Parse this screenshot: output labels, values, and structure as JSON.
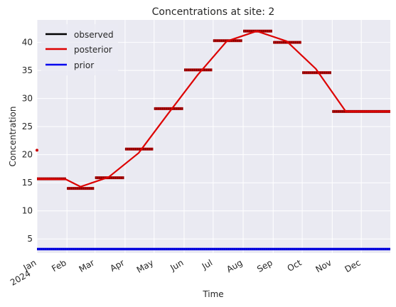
{
  "chart_data": {
    "type": "line",
    "title": "Concentrations at site: 2",
    "xlabel": "Time",
    "ylabel": "Concentration",
    "xlim": [
      "2024-01-01",
      "2024-12-31"
    ],
    "ylim": [
      2.5,
      44
    ],
    "grid": true,
    "legend_position": "top-left",
    "x_ticks": [
      {
        "date": "2024-01-01",
        "label": "Jan",
        "sublabel": "2024"
      },
      {
        "date": "2024-02-01",
        "label": "Feb"
      },
      {
        "date": "2024-03-01",
        "label": "Mar"
      },
      {
        "date": "2024-04-01",
        "label": "Apr"
      },
      {
        "date": "2024-05-01",
        "label": "May"
      },
      {
        "date": "2024-06-01",
        "label": "Jun"
      },
      {
        "date": "2024-07-01",
        "label": "Jul"
      },
      {
        "date": "2024-08-01",
        "label": "Aug"
      },
      {
        "date": "2024-09-01",
        "label": "Sep"
      },
      {
        "date": "2024-10-01",
        "label": "Oct"
      },
      {
        "date": "2024-11-01",
        "label": "Nov"
      },
      {
        "date": "2024-12-01",
        "label": "Dec"
      }
    ],
    "y_ticks": [
      5,
      10,
      15,
      20,
      25,
      30,
      35,
      40
    ],
    "series": [
      {
        "name": "observed",
        "color": "#000000",
        "style": "markers",
        "segments": [
          {
            "start": "2024-01-01",
            "end": "2024-01-31",
            "value": 15.7
          },
          {
            "start": "2024-02-01",
            "end": "2024-02-29",
            "value": 14.0
          },
          {
            "start": "2024-03-01",
            "end": "2024-03-31",
            "value": 15.9
          },
          {
            "start": "2024-04-01",
            "end": "2024-04-30",
            "value": 21.0
          },
          {
            "start": "2024-05-01",
            "end": "2024-05-31",
            "value": 28.2
          },
          {
            "start": "2024-06-01",
            "end": "2024-06-30",
            "value": 35.1
          },
          {
            "start": "2024-07-01",
            "end": "2024-07-31",
            "value": 40.3
          },
          {
            "start": "2024-08-01",
            "end": "2024-08-31",
            "value": 42.0
          },
          {
            "start": "2024-09-01",
            "end": "2024-09-30",
            "value": 40.0
          },
          {
            "start": "2024-10-01",
            "end": "2024-10-31",
            "value": 34.6
          },
          {
            "start": "2024-11-01",
            "end": "2024-12-31",
            "value": 27.7
          }
        ],
        "extra_points": [
          {
            "date": "2024-01-01",
            "value": 20.8
          }
        ]
      },
      {
        "name": "posterior",
        "color": "#dd0000",
        "style": "line",
        "points": [
          {
            "date": "2024-01-01",
            "value": 15.7
          },
          {
            "date": "2024-01-31",
            "value": 15.6
          },
          {
            "date": "2024-02-15",
            "value": 14.3
          },
          {
            "date": "2024-03-15",
            "value": 16.0
          },
          {
            "date": "2024-04-15",
            "value": 20.3
          },
          {
            "date": "2024-05-15",
            "value": 27.2
          },
          {
            "date": "2024-06-15",
            "value": 34.2
          },
          {
            "date": "2024-07-15",
            "value": 40.2
          },
          {
            "date": "2024-08-15",
            "value": 42.0
          },
          {
            "date": "2024-09-15",
            "value": 40.2
          },
          {
            "date": "2024-10-15",
            "value": 35.3
          },
          {
            "date": "2024-11-15",
            "value": 27.7
          },
          {
            "date": "2024-12-31",
            "value": 27.7
          }
        ]
      },
      {
        "name": "prior",
        "color": "#0000ee",
        "style": "line",
        "points": [
          {
            "date": "2024-01-01",
            "value": 3.2
          },
          {
            "date": "2024-12-31",
            "value": 3.2
          }
        ]
      }
    ]
  }
}
